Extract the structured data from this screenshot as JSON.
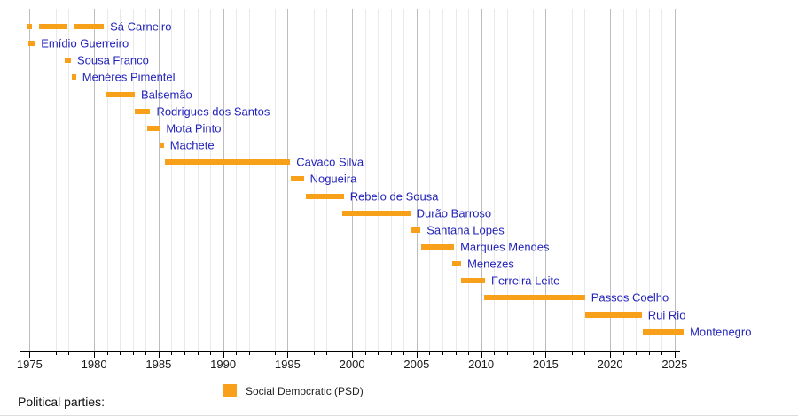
{
  "chart_data": {
    "type": "bar",
    "subtype": "gantt-timeline",
    "title": "",
    "xlabel": "",
    "ylabel": "",
    "x_axis": {
      "min": 1974.2,
      "max": 2025.8,
      "major_ticks": [
        1975,
        1980,
        1985,
        1990,
        1995,
        2000,
        2005,
        2010,
        2015,
        2020,
        2025
      ],
      "minor_tick_interval": 1,
      "grid": "on"
    },
    "legend_position": "bottom",
    "series": [
      {
        "name": "Sá Carneiro",
        "party": "PSD",
        "segments": [
          [
            1974.75,
            1975.2
          ],
          [
            1975.75,
            1977.95
          ],
          [
            1978.5,
            1980.75
          ]
        ]
      },
      {
        "name": "Emídio Guerreiro",
        "party": "PSD",
        "segments": [
          [
            1974.9,
            1975.4
          ]
        ]
      },
      {
        "name": "Sousa Franco",
        "party": "PSD",
        "segments": [
          [
            1977.75,
            1978.2
          ]
        ]
      },
      {
        "name": "Menéres Pimentel",
        "party": "PSD",
        "segments": [
          [
            1978.3,
            1978.6
          ]
        ]
      },
      {
        "name": "Balsemão",
        "party": "PSD",
        "segments": [
          [
            1980.85,
            1983.15
          ]
        ]
      },
      {
        "name": "Rodrigues dos Santos",
        "party": "PSD",
        "segments": [
          [
            1983.15,
            1984.35
          ]
        ]
      },
      {
        "name": "Mota Pinto",
        "party": "PSD",
        "segments": [
          [
            1984.1,
            1985.1
          ]
        ]
      },
      {
        "name": "Machete",
        "party": "PSD",
        "segments": [
          [
            1985.15,
            1985.4
          ]
        ]
      },
      {
        "name": "Cavaco Silva",
        "party": "PSD",
        "segments": [
          [
            1985.5,
            1995.2
          ]
        ]
      },
      {
        "name": "Nogueira",
        "party": "PSD",
        "segments": [
          [
            1995.25,
            1996.25
          ]
        ]
      },
      {
        "name": "Rebelo de Sousa",
        "party": "PSD",
        "segments": [
          [
            1996.4,
            1999.35
          ]
        ]
      },
      {
        "name": "Durão Barroso",
        "party": "PSD",
        "segments": [
          [
            1999.25,
            2004.5
          ]
        ]
      },
      {
        "name": "Santana Lopes",
        "party": "PSD",
        "segments": [
          [
            2004.5,
            2005.3
          ]
        ]
      },
      {
        "name": "Marques Mendes",
        "party": "PSD",
        "segments": [
          [
            2005.35,
            2007.9
          ]
        ]
      },
      {
        "name": "Menezes",
        "party": "PSD",
        "segments": [
          [
            2007.75,
            2008.45
          ]
        ]
      },
      {
        "name": "Ferreira Leite",
        "party": "PSD",
        "segments": [
          [
            2008.45,
            2010.3
          ]
        ]
      },
      {
        "name": "Passos Coelho",
        "party": "PSD",
        "segments": [
          [
            2010.25,
            2018.05
          ]
        ]
      },
      {
        "name": "Rui Rio",
        "party": "PSD",
        "segments": [
          [
            2018.05,
            2022.45
          ]
        ]
      },
      {
        "name": "Montenegro",
        "party": "PSD",
        "segments": [
          [
            2022.5,
            2025.7
          ]
        ]
      }
    ],
    "legend": [
      {
        "label": "Social Democratic (PSD)",
        "color": "#F9A01B"
      }
    ]
  },
  "footer": {
    "parties_label": "Political parties:",
    "legend_label": "Social Democratic (PSD)"
  },
  "colors": {
    "bar": "#F9A01B",
    "bar_label_text": "#2323BB",
    "axis": "#000000",
    "tick_label_text": "#1A1A1A",
    "grid_minor": "#E9E9E9",
    "grid_major": "#BEBEBE",
    "bottom_rule": "#DDDDDD"
  }
}
